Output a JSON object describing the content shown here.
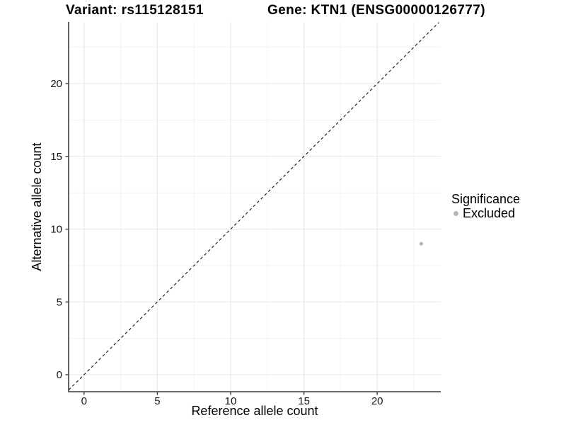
{
  "chart_data": {
    "type": "scatter",
    "titles": {
      "left": "Variant: rs115128151",
      "right": "Gene: KTN1 (ENSG00000126777)"
    },
    "xlabel": "Reference allele count",
    "ylabel": "Alternative allele count",
    "x_ticks": [
      0,
      5,
      10,
      15,
      20
    ],
    "y_ticks": [
      0,
      5,
      10,
      15,
      20
    ],
    "x_minor_ticks": [
      2.5,
      7.5,
      12.5,
      17.5,
      22.5
    ],
    "y_minor_ticks": [
      2.5,
      7.5,
      12.5,
      17.5,
      22.5
    ],
    "xlim": [
      -1.05,
      24.34
    ],
    "ylim": [
      -1.17,
      24.2
    ],
    "grid": "major+minor",
    "background": "#ffffff",
    "reference_line": {
      "type": "identity",
      "slope": 1,
      "intercept": 0,
      "style": "dashed",
      "color": "#111111"
    },
    "series": [
      {
        "name": "Excluded",
        "color": "#b5b5b5",
        "points": [
          {
            "x": 23,
            "y": 9
          }
        ]
      }
    ],
    "legend": {
      "title": "Significance",
      "position": "right",
      "entries": [
        {
          "label": "Excluded",
          "color": "#b5b5b5",
          "marker": "circle"
        }
      ]
    }
  }
}
